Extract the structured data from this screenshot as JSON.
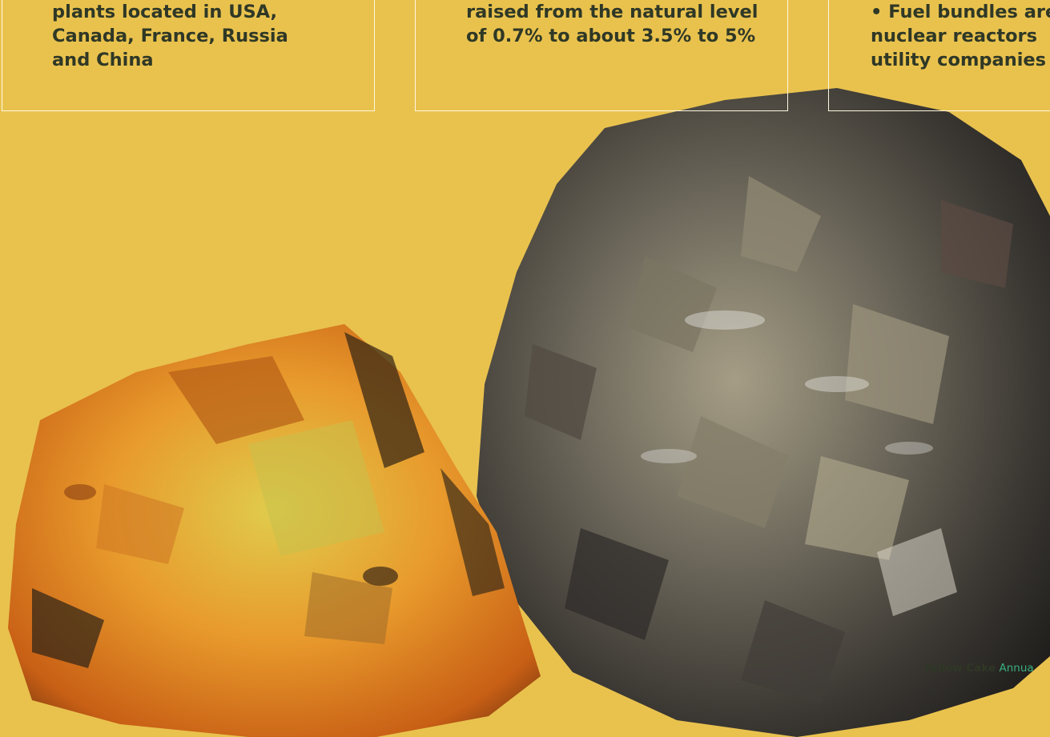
{
  "panels": [
    {
      "text": "plants located in USA,\nCanada, France, Russia\nand China"
    },
    {
      "text": "raised from the natural level\nof 0.7% to about 3.5% to 5%"
    },
    {
      "text": "• Fuel bundles are\nnuclear reactors\nutility companies"
    }
  ],
  "credit": {
    "brand": "Yellow Cake",
    "sub": "Annua"
  }
}
